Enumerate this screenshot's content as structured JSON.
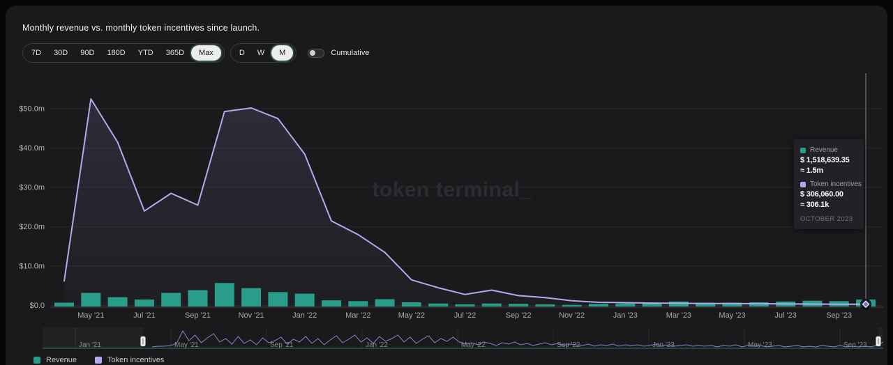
{
  "title": "Monthly revenue vs. monthly token incentives since launch.",
  "watermark": "token terminal_",
  "toolbar": {
    "range_options": [
      "7D",
      "30D",
      "90D",
      "180D",
      "YTD",
      "365D",
      "Max"
    ],
    "range_selected": "Max",
    "granularity_options": [
      "D",
      "W",
      "M"
    ],
    "granularity_selected": "M",
    "cumulative_label": "Cumulative",
    "cumulative_on": false
  },
  "colors": {
    "revenue": "#2a9d8a",
    "incentives_line": "#b2aaea",
    "incentives_legend": "#b4a6f0",
    "panel_bg": "#1a1a1c",
    "grid": "#27272a",
    "axis_text": "#a9a9a7",
    "spark": "#8b83cd",
    "spark_base": "#237a67"
  },
  "chart_data": {
    "type": "bar",
    "title": "Monthly revenue vs. monthly token incentives since launch.",
    "x": [
      "Apr '21",
      "May '21",
      "Jun '21",
      "Jul '21",
      "Aug '21",
      "Sep '21",
      "Oct '21",
      "Nov '21",
      "Dec '21",
      "Jan '22",
      "Feb '22",
      "Mar '22",
      "Apr '22",
      "May '22",
      "Jun '22",
      "Jul '22",
      "Aug '22",
      "Sep '22",
      "Oct '22",
      "Nov '22",
      "Dec '22",
      "Jan '23",
      "Feb '23",
      "Mar '23",
      "Apr '23",
      "May '23",
      "Jun '23",
      "Jul '23",
      "Aug '23",
      "Sep '23",
      "Oct '23"
    ],
    "series": [
      {
        "name": "Revenue",
        "type": "bar",
        "unit": "USD millions",
        "values": [
          0.7,
          3.2,
          2.1,
          1.5,
          3.2,
          3.9,
          5.7,
          4.4,
          3.4,
          3.0,
          1.3,
          1.1,
          1.6,
          0.8,
          0.5,
          0.3,
          0.5,
          0.4,
          0.25,
          0.15,
          0.4,
          0.5,
          0.6,
          1.0,
          0.7,
          0.7,
          0.8,
          1.0,
          1.2,
          1.1,
          1.5
        ]
      },
      {
        "name": "Token incentives",
        "type": "line",
        "unit": "USD millions",
        "values": [
          6.2,
          52.5,
          41.5,
          24.0,
          28.5,
          25.5,
          49.3,
          50.2,
          47.5,
          38.5,
          21.5,
          18.0,
          13.5,
          6.5,
          4.5,
          2.8,
          3.9,
          2.5,
          2.0,
          1.2,
          0.8,
          0.7,
          0.6,
          0.55,
          0.5,
          0.5,
          0.45,
          0.4,
          0.35,
          0.3,
          0.31
        ]
      }
    ],
    "y_tick_labels": [
      "$0.0",
      "$10.0m",
      "$20.0m",
      "$30.0m",
      "$40.0m",
      "$50.0m"
    ],
    "y_tick_values": [
      0,
      10,
      20,
      30,
      40,
      50
    ],
    "ylim": [
      0,
      55
    ],
    "x_tick_every_other_from": 1,
    "legend_position": "bottom-left",
    "grid": "horizontal"
  },
  "tooltip": {
    "rows": [
      {
        "label": "Revenue",
        "color": "#2a9d8a",
        "value": "$ 1,518,639.35",
        "approx": "≈ 1.5m"
      },
      {
        "label": "Token incentives",
        "color": "#b4a6f0",
        "value": "$ 306,060.00",
        "approx": "≈ 306.1k"
      }
    ],
    "footer": "OCTOBER 2023",
    "hovered_month": "Oct '23"
  },
  "navigator": {
    "tick_labels": [
      "Jan '21",
      "May '21",
      "Sep '21",
      "Jan '22",
      "May '22",
      "Sep '22",
      "Jan '23",
      "May '23",
      "Sep '23"
    ],
    "spark_amplitudes": [
      1,
      2,
      2,
      3,
      6,
      24,
      10,
      18,
      7,
      14,
      20,
      8,
      13,
      5,
      16,
      6,
      11,
      4,
      14,
      7,
      10,
      15,
      5,
      12,
      8,
      16,
      6,
      13,
      4,
      11,
      17,
      7,
      12,
      18,
      8,
      14,
      6,
      16,
      9,
      13,
      18,
      8,
      15,
      6,
      12,
      17,
      7,
      13,
      9,
      15,
      8,
      5,
      7,
      4,
      8,
      6,
      3,
      7,
      5,
      8,
      4,
      6,
      3,
      5,
      7,
      4,
      6,
      3,
      5,
      4,
      3,
      5,
      2,
      4,
      3,
      5,
      2,
      4,
      3,
      4,
      2,
      3,
      5,
      2,
      4,
      2,
      3,
      4,
      2,
      3,
      2,
      3,
      1,
      3,
      2,
      4,
      1,
      3,
      2,
      3,
      1,
      2,
      3,
      1,
      2,
      3,
      1,
      2,
      1,
      3,
      2,
      1,
      3,
      1,
      2,
      1,
      2,
      1,
      3,
      8
    ]
  },
  "legend": [
    {
      "label": "Revenue",
      "color": "#2a9d8a"
    },
    {
      "label": "Token incentives",
      "color": "#b4a6f0"
    }
  ]
}
